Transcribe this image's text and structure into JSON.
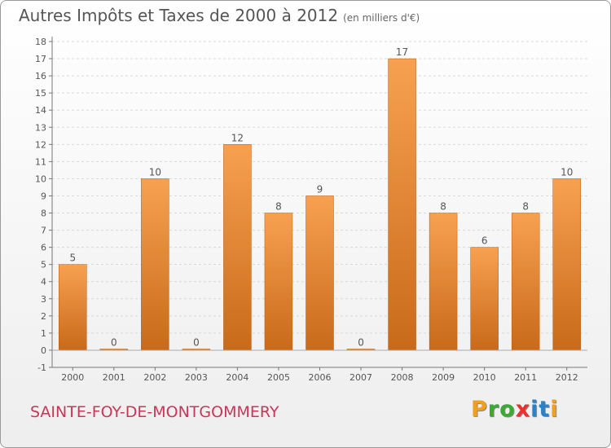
{
  "header": {
    "title": "Autres Impôts et Taxes de 2000 à 2012",
    "subtitle": "(en milliers d'€)"
  },
  "footer": {
    "commune": "SAINTE-FOY-DE-MONTGOMMERY",
    "logo_letters": [
      "P",
      "r",
      "o",
      "x",
      "i",
      "t",
      "i"
    ],
    "logo_colors": [
      "#f0a020",
      "#3aaa35",
      "#3aaa35",
      "#e8322d",
      "#2a82c9",
      "#2a82c9",
      "#f0a020"
    ]
  },
  "colors": {
    "bar_top": "#f7a150",
    "bar_bottom": "#c86a1a",
    "axis": "#777777",
    "grid": "#d9d9d9",
    "text": "#555555"
  },
  "chart_data": {
    "type": "bar",
    "categories": [
      "2000",
      "2001",
      "2002",
      "2003",
      "2004",
      "2005",
      "2006",
      "2007",
      "2008",
      "2009",
      "2010",
      "2011",
      "2012"
    ],
    "values": [
      5,
      0,
      10,
      0,
      12,
      8,
      9,
      0,
      17,
      8,
      6,
      8,
      10
    ],
    "data_labels": [
      "5",
      "0",
      "10",
      "0",
      "12",
      "8",
      "9",
      "0",
      "17",
      "8",
      "6",
      "8",
      "10"
    ],
    "yticks": [
      "-1",
      "0",
      "1",
      "2",
      "3",
      "4",
      "5",
      "6",
      "7",
      "8",
      "9",
      "10",
      "11",
      "12",
      "13",
      "14",
      "15",
      "16",
      "17",
      "18"
    ],
    "ylim": [
      -1,
      18
    ],
    "grid": true,
    "title": "Autres Impôts et Taxes de 2000 à 2012",
    "xlabel": "",
    "ylabel": ""
  }
}
